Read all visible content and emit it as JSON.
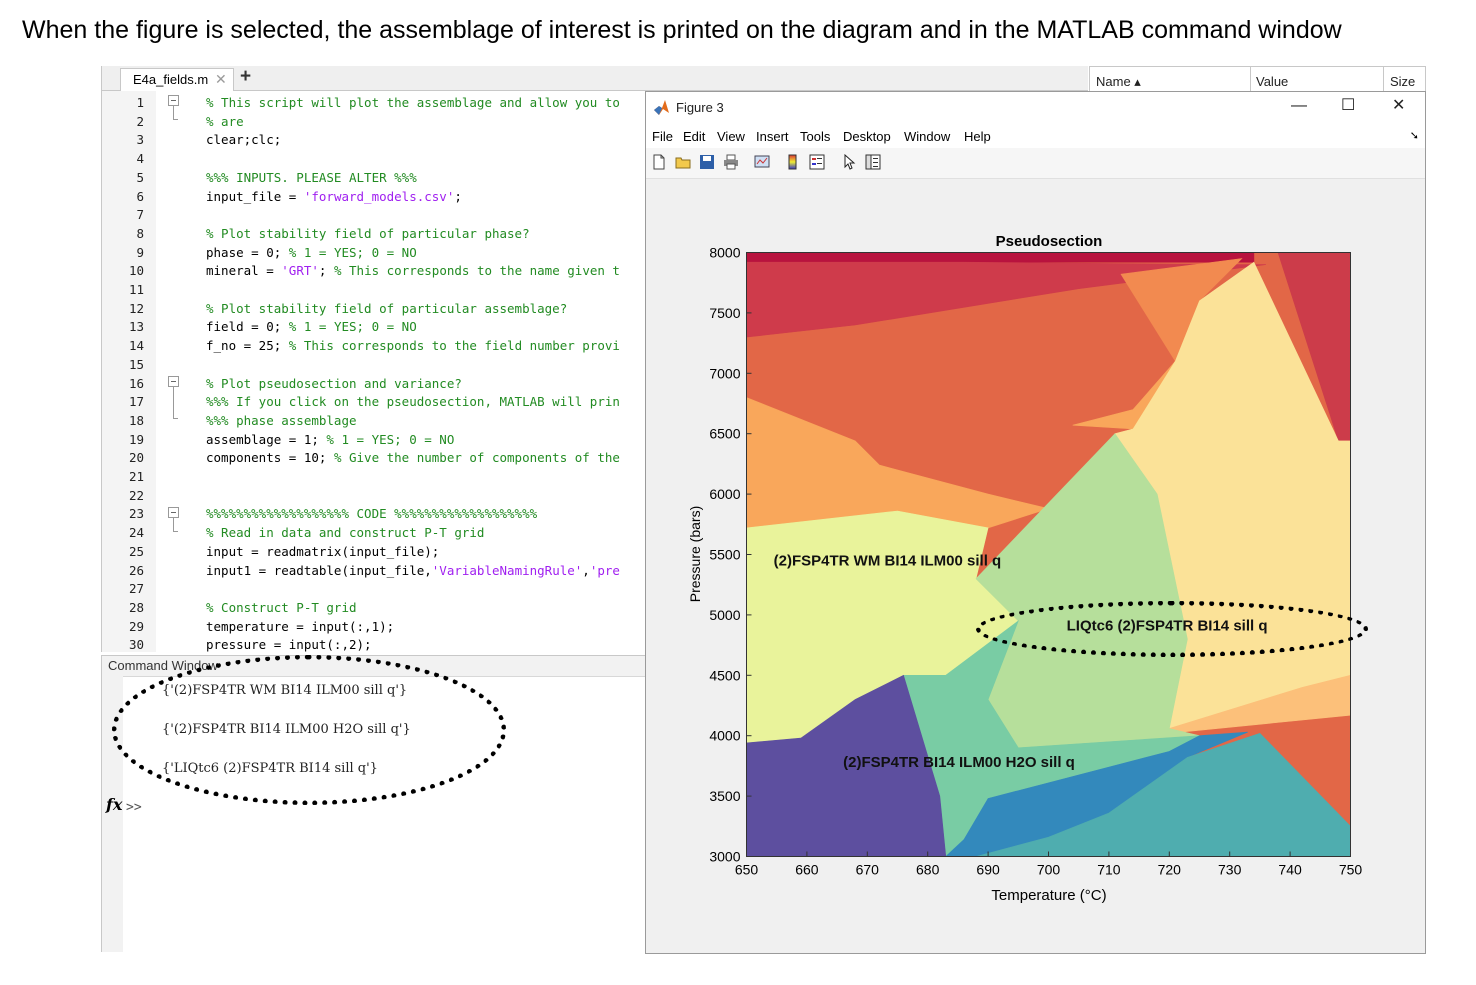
{
  "caption": "When the figure is selected, the assemblage of interest is printed on the diagram and in the MATLAB command window",
  "editor": {
    "tab_label": "E4a_fields.m",
    "lines": [
      {
        "n": "1",
        "parts": [
          {
            "t": "% This script will plot the assemblage and allow you to",
            "c": "cm"
          }
        ]
      },
      {
        "n": "2",
        "parts": [
          {
            "t": "% are",
            "c": "cm"
          }
        ]
      },
      {
        "n": "3",
        "parts": [
          {
            "t": "clear;clc;",
            "c": ""
          }
        ]
      },
      {
        "n": "4",
        "parts": []
      },
      {
        "n": "5",
        "parts": [
          {
            "t": "%%% INPUTS. PLEASE ALTER %%%",
            "c": "cm"
          }
        ]
      },
      {
        "n": "6",
        "parts": [
          {
            "t": "input_file = ",
            "c": ""
          },
          {
            "t": "'forward_models.csv'",
            "c": "st"
          },
          {
            "t": ";",
            "c": ""
          }
        ]
      },
      {
        "n": "7",
        "parts": []
      },
      {
        "n": "8",
        "parts": [
          {
            "t": "% Plot stability field of particular phase?",
            "c": "cm"
          }
        ]
      },
      {
        "n": "9",
        "parts": [
          {
            "t": "phase = 0; ",
            "c": ""
          },
          {
            "t": "% 1 = YES; 0 = NO",
            "c": "cm"
          }
        ]
      },
      {
        "n": "10",
        "parts": [
          {
            "t": "mineral = ",
            "c": ""
          },
          {
            "t": "'GRT'",
            "c": "st"
          },
          {
            "t": "; ",
            "c": ""
          },
          {
            "t": "% This corresponds to the name given t",
            "c": "cm"
          }
        ]
      },
      {
        "n": "11",
        "parts": []
      },
      {
        "n": "12",
        "parts": [
          {
            "t": "% Plot stability field of particular assemblage?",
            "c": "cm"
          }
        ]
      },
      {
        "n": "13",
        "parts": [
          {
            "t": "field = 0; ",
            "c": ""
          },
          {
            "t": "% 1 = YES; 0 = NO",
            "c": "cm"
          }
        ]
      },
      {
        "n": "14",
        "parts": [
          {
            "t": "f_no = 25; ",
            "c": ""
          },
          {
            "t": "% This corresponds to the field number provi",
            "c": "cm"
          }
        ]
      },
      {
        "n": "15",
        "parts": []
      },
      {
        "n": "16",
        "parts": [
          {
            "t": "% Plot pseudosection and variance?",
            "c": "cm"
          }
        ]
      },
      {
        "n": "17",
        "parts": [
          {
            "t": "%%% If you click on the pseudosection, MATLAB will prin",
            "c": "cm"
          }
        ]
      },
      {
        "n": "18",
        "parts": [
          {
            "t": "%%% phase assemblage",
            "c": "cm"
          }
        ]
      },
      {
        "n": "19",
        "parts": [
          {
            "t": "assemblage = 1; ",
            "c": ""
          },
          {
            "t": "% 1 = YES; 0 = NO",
            "c": "cm"
          }
        ]
      },
      {
        "n": "20",
        "parts": [
          {
            "t": "components = 10; ",
            "c": ""
          },
          {
            "t": "% Give the number of components of the",
            "c": "cm"
          }
        ]
      },
      {
        "n": "21",
        "parts": []
      },
      {
        "n": "22",
        "parts": []
      },
      {
        "n": "23",
        "parts": [
          {
            "t": "%%%%%%%%%%%%%%%%%%% CODE %%%%%%%%%%%%%%%%%%%",
            "c": "cm"
          }
        ]
      },
      {
        "n": "24",
        "parts": [
          {
            "t": "% Read in data and construct P-T grid",
            "c": "cm"
          }
        ]
      },
      {
        "n": "25",
        "parts": [
          {
            "t": "input = readmatrix(input_file);",
            "c": ""
          }
        ]
      },
      {
        "n": "26",
        "parts": [
          {
            "t": "input1 = readtable(input_file,",
            "c": ""
          },
          {
            "t": "'VariableNamingRule'",
            "c": "st"
          },
          {
            "t": ",",
            "c": ""
          },
          {
            "t": "'pre",
            "c": "st"
          }
        ]
      },
      {
        "n": "27",
        "parts": []
      },
      {
        "n": "28",
        "parts": [
          {
            "t": "% Construct P-T grid",
            "c": "cm"
          }
        ]
      },
      {
        "n": "29",
        "parts": [
          {
            "t": "temperature = input(:,1);",
            "c": ""
          }
        ]
      },
      {
        "n": "30",
        "parts": [
          {
            "t": "pressure = input(:,2);",
            "c": ""
          }
        ]
      }
    ]
  },
  "command_window": {
    "title": "Command Window",
    "outputs": [
      "{'(2)FSP4TR WM BI14 ILM00 sill q'}",
      "{'(2)FSP4TR BI14 ILM00 H2O sill q'}",
      "{'LIQtc6 (2)FSP4TR BI14 sill q'}"
    ],
    "fx_label": "fx",
    "prompt": ">>"
  },
  "workspace": {
    "columns": [
      "Name ▴",
      "Value",
      "Size"
    ]
  },
  "figure": {
    "title": "Figure 3",
    "menus": [
      "File",
      "Edit",
      "View",
      "Insert",
      "Tools",
      "Desktop",
      "Window",
      "Help"
    ],
    "toolbar_icons": [
      "new-figure-icon",
      "open-file-icon",
      "save-icon",
      "print-icon",
      "link-plot-icon",
      "insert-colorbar-icon",
      "insert-legend-icon",
      "edit-plot-icon",
      "property-inspector-icon"
    ]
  },
  "chart_data": {
    "type": "heatmap",
    "title": "Pseudosection",
    "xlabel": "Temperature (°C)",
    "ylabel": "Pressure (bars)",
    "xlim": [
      650,
      750
    ],
    "ylim": [
      3000,
      8000
    ],
    "xticks": [
      650,
      660,
      670,
      680,
      690,
      700,
      710,
      720,
      730,
      740,
      750
    ],
    "yticks": [
      3000,
      3500,
      4000,
      4500,
      5000,
      5500,
      6000,
      6500,
      7000,
      7500,
      8000
    ],
    "annotations": [
      {
        "text": "(2)FSP4TR WM BI14 ILM00 sill q",
        "x": 654.5,
        "y": 5410
      },
      {
        "text": "LIQtc6 (2)FSP4TR BI14 sill q",
        "x": 703,
        "y": 4870
      },
      {
        "text": "(2)FSP4TR BI14 ILM00 H2O sill q",
        "x": 666,
        "y": 3740
      }
    ],
    "fields": [
      {
        "color": "#e26747",
        "points": [
          [
            650,
            8000
          ],
          [
            751,
            8000
          ],
          [
            751,
            3000
          ],
          [
            650,
            3000
          ]
        ]
      },
      {
        "color": "#b8133e",
        "points": [
          [
            650,
            8000
          ],
          [
            734,
            8000
          ],
          [
            734,
            7920
          ],
          [
            650,
            7920
          ]
        ]
      },
      {
        "color": "#cf3b4b",
        "points": [
          [
            650,
            7920
          ],
          [
            686,
            7920
          ],
          [
            730,
            7900
          ],
          [
            736,
            7900
          ],
          [
            705,
            7700
          ],
          [
            668,
            7400
          ],
          [
            650,
            7300
          ]
        ]
      },
      {
        "color": "#cc3c4a",
        "points": [
          [
            738,
            8000
          ],
          [
            751,
            8000
          ],
          [
            751,
            6440
          ],
          [
            748,
            6440
          ]
        ]
      },
      {
        "color": "#f28a50",
        "points": [
          [
            712,
            7820
          ],
          [
            732,
            7950
          ],
          [
            725,
            7600
          ],
          [
            721,
            7100
          ]
        ]
      },
      {
        "color": "#f9a75b",
        "points": [
          [
            650,
            6800
          ],
          [
            668,
            6440
          ],
          [
            672,
            6240
          ],
          [
            690,
            6000
          ],
          [
            700,
            5880
          ],
          [
            690,
            5720
          ],
          [
            675,
            5860
          ],
          [
            650,
            5720
          ]
        ]
      },
      {
        "color": "#f9a75b",
        "points": [
          [
            704,
            6570
          ],
          [
            714,
            6540
          ],
          [
            721,
            7100
          ],
          [
            714,
            6700
          ]
        ]
      },
      {
        "color": "#fbe298",
        "points": [
          [
            734,
            7920
          ],
          [
            748,
            6440
          ],
          [
            751,
            6440
          ],
          [
            751,
            4500
          ],
          [
            742,
            4400
          ],
          [
            720,
            4060
          ],
          [
            723,
            4800
          ],
          [
            718,
            6000
          ],
          [
            711,
            6500
          ],
          [
            714,
            6540
          ],
          [
            721,
            7100
          ],
          [
            725,
            7600
          ]
        ]
      },
      {
        "color": "#fcc07a",
        "points": [
          [
            742,
            4400
          ],
          [
            751,
            4500
          ],
          [
            751,
            4170
          ],
          [
            720,
            4020
          ],
          [
            720,
            4060
          ]
        ]
      },
      {
        "color": "#e9f39b",
        "points": [
          [
            650,
            5720
          ],
          [
            675,
            5860
          ],
          [
            690,
            5720
          ],
          [
            688,
            5300
          ],
          [
            695,
            4950
          ],
          [
            683,
            4500
          ],
          [
            676,
            4500
          ],
          [
            668,
            4300
          ],
          [
            659,
            3980
          ],
          [
            650,
            3940
          ]
        ]
      },
      {
        "color": "#b6df9b",
        "points": [
          [
            688,
            5300
          ],
          [
            711,
            6500
          ],
          [
            718,
            6000
          ],
          [
            723,
            4800
          ],
          [
            720,
            4060
          ],
          [
            725,
            4000
          ],
          [
            695,
            3900
          ],
          [
            690,
            4300
          ],
          [
            695,
            4950
          ]
        ]
      },
      {
        "color": "#79cca4",
        "points": [
          [
            676,
            4500
          ],
          [
            683,
            4500
          ],
          [
            695,
            4950
          ],
          [
            690,
            4300
          ],
          [
            695,
            3900
          ],
          [
            725,
            4000
          ],
          [
            720,
            3870
          ],
          [
            690,
            3480
          ],
          [
            686,
            3140
          ],
          [
            683,
            3000
          ],
          [
            682,
            3500
          ]
        ]
      },
      {
        "color": "#5d4f9f",
        "points": [
          [
            650,
            3940
          ],
          [
            659,
            3980
          ],
          [
            668,
            4300
          ],
          [
            676,
            4500
          ],
          [
            682,
            3500
          ],
          [
            683,
            3000
          ],
          [
            650,
            3000
          ]
        ]
      },
      {
        "color": "#3389bc",
        "points": [
          [
            683,
            3000
          ],
          [
            686,
            3140
          ],
          [
            690,
            3480
          ],
          [
            720,
            3870
          ],
          [
            725,
            4000
          ],
          [
            733,
            4030
          ],
          [
            723,
            3820
          ],
          [
            710,
            3360
          ],
          [
            700,
            3160
          ],
          [
            688,
            3000
          ]
        ]
      },
      {
        "color": "#4fadaf",
        "points": [
          [
            688,
            3000
          ],
          [
            700,
            3160
          ],
          [
            710,
            3360
          ],
          [
            723,
            3820
          ],
          [
            735,
            4020
          ],
          [
            751,
            3250
          ],
          [
            751,
            3000
          ]
        ]
      }
    ]
  }
}
